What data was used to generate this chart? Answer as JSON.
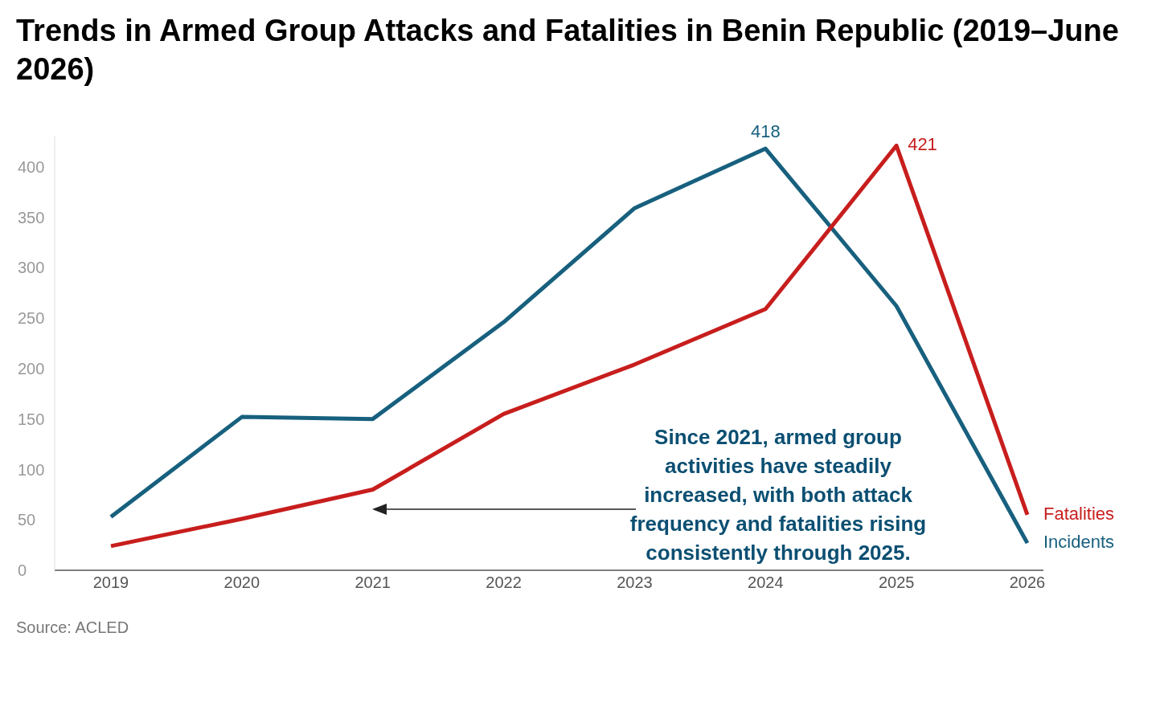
{
  "chart_data": {
    "type": "line",
    "title": "Trends in Armed Group Attacks and Fatalities in Benin Republic (2019–June 2026)",
    "categories": [
      "2019",
      "2020",
      "2021",
      "2022",
      "2023",
      "2024",
      "2025",
      "2026"
    ],
    "series": [
      {
        "name": "Incidents",
        "color": "#17607e",
        "values": [
          53,
          152,
          150,
          246,
          359,
          418,
          262,
          27
        ],
        "value_labels": [
          null,
          null,
          null,
          null,
          null,
          "418",
          null,
          null
        ]
      },
      {
        "name": "Fatalities",
        "color": "#c71e1d",
        "values": [
          24,
          51,
          80,
          155,
          204,
          259,
          421,
          55
        ],
        "value_labels": [
          null,
          null,
          null,
          null,
          null,
          null,
          "421",
          null
        ]
      }
    ],
    "ylim": [
      0,
      430
    ],
    "yticks": [
      0,
      50,
      100,
      150,
      200,
      250,
      300,
      350,
      400
    ],
    "grid": false,
    "legend": false,
    "marker": "none",
    "line_style": "solid",
    "annotations": [
      "Since 2021, armed group activities have steadily increased, with both attack frequency and fatalities rising consistently through 2025.",
      "Source: ACLED"
    ]
  }
}
